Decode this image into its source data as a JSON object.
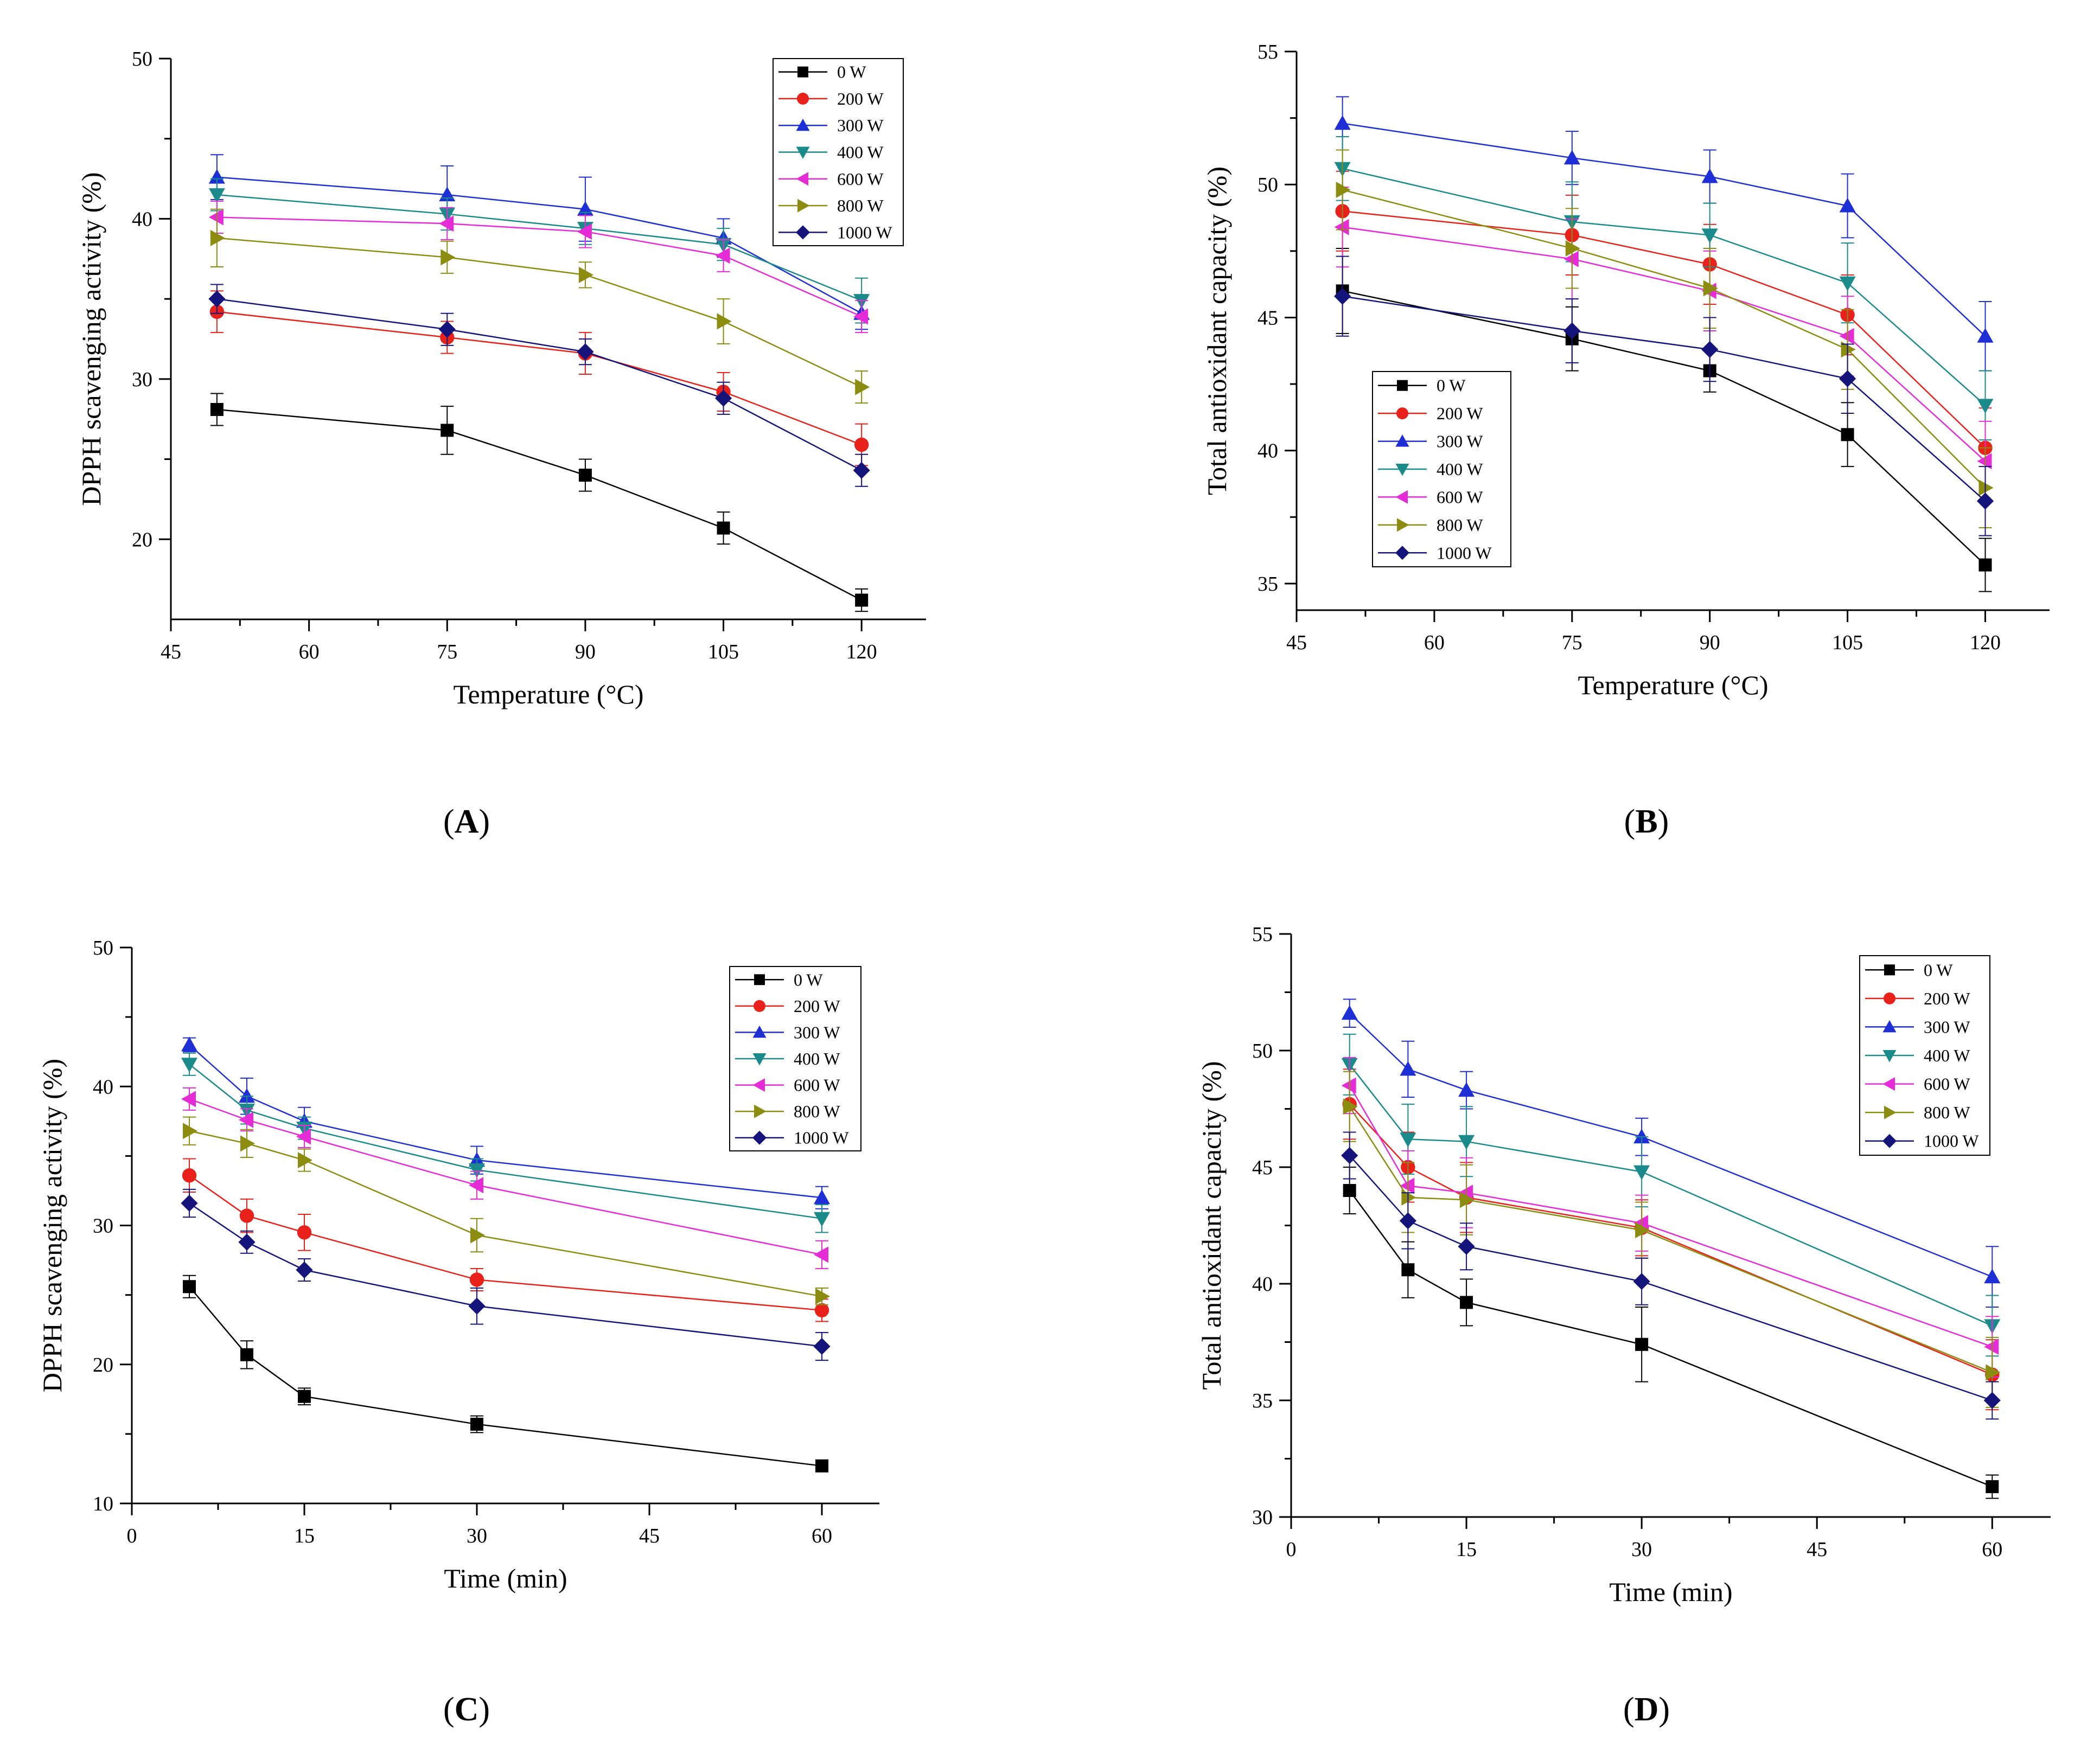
{
  "chart_data": [
    {
      "id": "A",
      "type": "line",
      "caption_letter": "A",
      "xlabel": "Temperature (°C)",
      "ylabel": "DPPH scavenging activity (%)",
      "xlim": [
        45,
        127
      ],
      "ylim": [
        15,
        50
      ],
      "xticks": [
        45,
        60,
        75,
        90,
        105,
        120
      ],
      "yticks": [
        20,
        30,
        40,
        50
      ],
      "legend_position": "top-right",
      "x": [
        50,
        75,
        90,
        105,
        120
      ],
      "series": [
        {
          "name": "0 W",
          "color": "#000000",
          "marker": "square",
          "values": [
            28.1,
            26.8,
            24.0,
            20.7,
            16.2
          ],
          "errors": [
            1.0,
            1.5,
            1.0,
            1.0,
            0.7
          ]
        },
        {
          "name": "200 W",
          "color": "#e8221a",
          "marker": "circle",
          "values": [
            34.2,
            32.6,
            31.6,
            29.2,
            25.9
          ],
          "errors": [
            1.3,
            1.0,
            1.3,
            1.2,
            1.3
          ]
        },
        {
          "name": "300 W",
          "color": "#1f2fd6",
          "marker": "triangle-up",
          "values": [
            42.6,
            41.5,
            40.6,
            38.8,
            34.1
          ],
          "errors": [
            1.4,
            1.8,
            2.0,
            1.2,
            1.0
          ]
        },
        {
          "name": "400 W",
          "color": "#1a8a8a",
          "marker": "triangle-down",
          "values": [
            41.5,
            40.3,
            39.4,
            38.4,
            34.9
          ],
          "errors": [
            1.0,
            1.0,
            1.0,
            1.0,
            1.4
          ]
        },
        {
          "name": "600 W",
          "color": "#e62cd6",
          "marker": "triangle-left",
          "values": [
            40.1,
            39.7,
            39.2,
            37.7,
            33.9
          ],
          "errors": [
            1.0,
            1.0,
            1.0,
            1.0,
            1.0
          ]
        },
        {
          "name": "800 W",
          "color": "#8c8c10",
          "marker": "triangle-right",
          "values": [
            38.8,
            37.6,
            36.5,
            33.6,
            29.5
          ],
          "errors": [
            1.8,
            1.0,
            0.8,
            1.4,
            1.0
          ]
        },
        {
          "name": "1000 W",
          "color": "#14147a",
          "marker": "diamond",
          "values": [
            35.0,
            33.1,
            31.7,
            28.8,
            24.3
          ],
          "errors": [
            0.9,
            1.0,
            0.8,
            1.0,
            1.0
          ]
        }
      ]
    },
    {
      "id": "B",
      "type": "line",
      "caption_letter": "B",
      "xlabel": "Temperature (°C)",
      "ylabel": "Total antioxidant capacity (%)",
      "xlim": [
        45,
        127
      ],
      "ylim": [
        34,
        55
      ],
      "xticks": [
        45,
        60,
        75,
        90,
        105,
        120
      ],
      "yticks": [
        35,
        40,
        45,
        50,
        55
      ],
      "legend_position": "bottom-left",
      "x": [
        50,
        75,
        90,
        105,
        120
      ],
      "series": [
        {
          "name": "0 W",
          "color": "#000000",
          "marker": "square",
          "values": [
            46.0,
            44.2,
            43.0,
            40.6,
            35.7
          ],
          "errors": [
            1.6,
            1.2,
            0.8,
            1.2,
            1.0
          ]
        },
        {
          "name": "200 W",
          "color": "#e8221a",
          "marker": "circle",
          "values": [
            49.0,
            48.1,
            47.0,
            45.1,
            40.1
          ],
          "errors": [
            1.5,
            1.5,
            1.5,
            1.5,
            1.5
          ]
        },
        {
          "name": "300 W",
          "color": "#1f2fd6",
          "marker": "triangle-up",
          "values": [
            52.3,
            51.0,
            50.3,
            49.2,
            44.3
          ],
          "errors": [
            1.0,
            1.0,
            1.0,
            1.2,
            1.3
          ]
        },
        {
          "name": "400 W",
          "color": "#1a8a8a",
          "marker": "triangle-down",
          "values": [
            50.6,
            48.6,
            48.1,
            46.3,
            41.7
          ],
          "errors": [
            1.2,
            1.5,
            1.2,
            1.5,
            1.3
          ]
        },
        {
          "name": "600 W",
          "color": "#e62cd6",
          "marker": "triangle-left",
          "values": [
            48.4,
            47.2,
            46.0,
            44.3,
            39.6
          ],
          "errors": [
            1.5,
            1.5,
            1.5,
            1.5,
            1.5
          ]
        },
        {
          "name": "800 W",
          "color": "#8c8c10",
          "marker": "triangle-right",
          "values": [
            49.8,
            47.6,
            46.1,
            43.8,
            38.6
          ],
          "errors": [
            1.5,
            1.5,
            1.5,
            1.5,
            1.5
          ]
        },
        {
          "name": "1000 W",
          "color": "#14147a",
          "marker": "diamond",
          "values": [
            45.8,
            44.5,
            43.8,
            42.7,
            38.1
          ],
          "errors": [
            1.5,
            1.2,
            1.2,
            1.3,
            1.3
          ]
        }
      ]
    },
    {
      "id": "C",
      "type": "line",
      "caption_letter": "C",
      "xlabel": "Time (min)",
      "ylabel": "DPPH scavenging activity (%)",
      "xlim": [
        0,
        65
      ],
      "ylim": [
        10,
        50
      ],
      "xticks": [
        0,
        15,
        30,
        45,
        60
      ],
      "yticks": [
        10,
        20,
        30,
        40,
        50
      ],
      "legend_position": "top-right",
      "x": [
        5,
        10,
        15,
        30,
        60
      ],
      "series": [
        {
          "name": "0 W",
          "color": "#000000",
          "marker": "square",
          "values": [
            25.6,
            20.7,
            17.7,
            15.7,
            12.7
          ],
          "errors": [
            0.8,
            1.0,
            0.6,
            0.6,
            0.3
          ]
        },
        {
          "name": "200 W",
          "color": "#e8221a",
          "marker": "circle",
          "values": [
            33.6,
            30.7,
            29.5,
            26.1,
            23.9
          ],
          "errors": [
            1.2,
            1.2,
            1.3,
            0.8,
            0.8
          ]
        },
        {
          "name": "300 W",
          "color": "#1f2fd6",
          "marker": "triangle-up",
          "values": [
            43.0,
            39.3,
            37.5,
            34.7,
            32.0
          ],
          "errors": [
            0.5,
            1.3,
            1.0,
            1.0,
            0.8
          ]
        },
        {
          "name": "400 W",
          "color": "#1a8a8a",
          "marker": "triangle-down",
          "values": [
            41.6,
            38.3,
            37.0,
            34.0,
            30.5
          ],
          "errors": [
            0.8,
            1.0,
            0.8,
            0.8,
            1.0
          ]
        },
        {
          "name": "600 W",
          "color": "#e62cd6",
          "marker": "triangle-left",
          "values": [
            39.1,
            37.6,
            36.4,
            32.9,
            27.9
          ],
          "errors": [
            0.8,
            0.8,
            0.8,
            1.0,
            1.0
          ]
        },
        {
          "name": "800 W",
          "color": "#8c8c10",
          "marker": "triangle-right",
          "values": [
            36.8,
            35.9,
            34.7,
            29.3,
            24.9
          ],
          "errors": [
            1.0,
            1.0,
            0.8,
            1.2,
            0.6
          ]
        },
        {
          "name": "1000 W",
          "color": "#14147a",
          "marker": "diamond",
          "values": [
            31.6,
            28.8,
            26.8,
            24.2,
            21.3
          ],
          "errors": [
            1.0,
            0.8,
            0.8,
            1.3,
            1.0
          ]
        }
      ]
    },
    {
      "id": "D",
      "type": "line",
      "caption_letter": "D",
      "xlabel": "Time (min)",
      "ylabel": "Total antioxidant capacity (%)",
      "xlim": [
        0,
        65
      ],
      "ylim": [
        30,
        55
      ],
      "xticks": [
        0,
        15,
        30,
        45,
        60
      ],
      "yticks": [
        30,
        35,
        40,
        45,
        50,
        55
      ],
      "legend_position": "top-right",
      "x": [
        5,
        10,
        15,
        30,
        60
      ],
      "series": [
        {
          "name": "0 W",
          "color": "#000000",
          "marker": "square",
          "values": [
            44.0,
            40.6,
            39.2,
            37.4,
            31.3
          ],
          "errors": [
            1.0,
            1.2,
            1.0,
            1.6,
            0.5
          ]
        },
        {
          "name": "200 W",
          "color": "#e8221a",
          "marker": "circle",
          "values": [
            47.7,
            45.0,
            43.7,
            42.4,
            36.1
          ],
          "errors": [
            1.5,
            1.5,
            1.5,
            1.2,
            1.5
          ]
        },
        {
          "name": "300 W",
          "color": "#1f2fd6",
          "marker": "triangle-up",
          "values": [
            51.6,
            49.2,
            48.3,
            46.3,
            40.3
          ],
          "errors": [
            0.6,
            1.2,
            0.8,
            0.8,
            1.3
          ]
        },
        {
          "name": "400 W",
          "color": "#1a8a8a",
          "marker": "triangle-down",
          "values": [
            49.4,
            46.2,
            46.1,
            44.8,
            38.2
          ],
          "errors": [
            1.3,
            1.5,
            1.5,
            1.5,
            1.3
          ]
        },
        {
          "name": "600 W",
          "color": "#e62cd6",
          "marker": "triangle-left",
          "values": [
            48.5,
            44.2,
            43.9,
            42.6,
            37.3
          ],
          "errors": [
            1.2,
            1.5,
            1.5,
            1.2,
            1.3
          ]
        },
        {
          "name": "800 W",
          "color": "#8c8c10",
          "marker": "triangle-right",
          "values": [
            47.6,
            43.7,
            43.6,
            42.3,
            36.2
          ],
          "errors": [
            1.5,
            1.5,
            1.5,
            1.2,
            1.5
          ]
        },
        {
          "name": "1000 W",
          "color": "#14147a",
          "marker": "diamond",
          "values": [
            45.5,
            42.7,
            41.6,
            40.1,
            35.0
          ],
          "errors": [
            1.0,
            1.2,
            1.0,
            1.0,
            0.8
          ]
        }
      ]
    }
  ]
}
